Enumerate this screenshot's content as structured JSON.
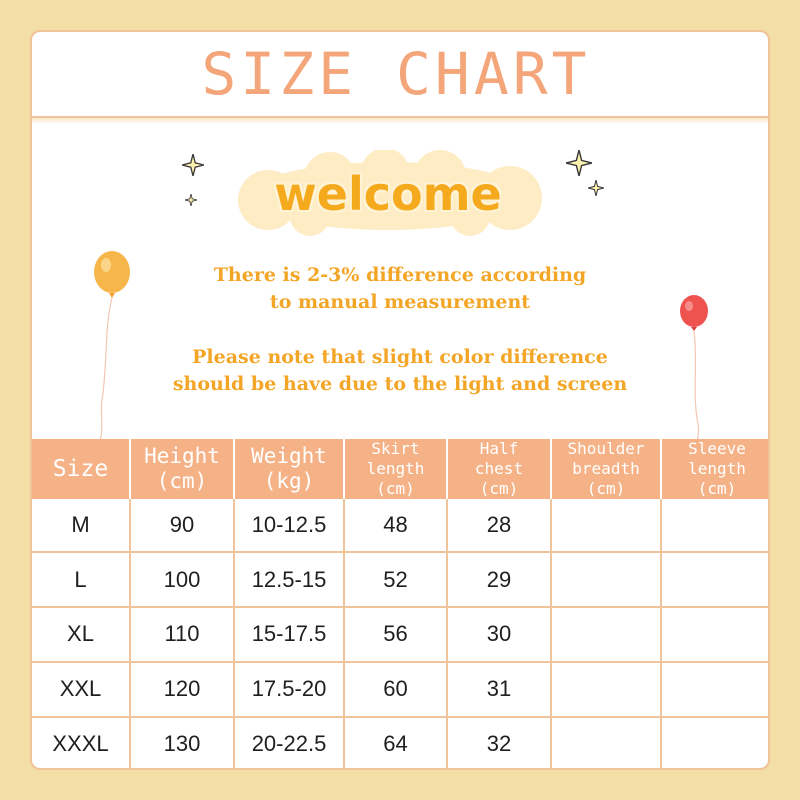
{
  "header": {
    "title": "SIZE CHART"
  },
  "banner": {
    "welcome": "welcome"
  },
  "notes": {
    "line1": "There is 2-3% difference according",
    "line2": "to manual measurement",
    "line3": "Please note that slight color difference",
    "line4": "should be have due to the light and screen"
  },
  "table": {
    "headers": [
      {
        "line1": "Size",
        "line2": "",
        "line3": ""
      },
      {
        "line1": "Height",
        "line2": "(cm)",
        "line3": ""
      },
      {
        "line1": "Weight",
        "line2": "(kg)",
        "line3": ""
      },
      {
        "line1": "Skirt",
        "line2": "length",
        "line3": "(cm)"
      },
      {
        "line1": "Half",
        "line2": "chest",
        "line3": "(cm)"
      },
      {
        "line1": "Shoulder",
        "line2": "breadth",
        "line3": "(cm)"
      },
      {
        "line1": "Sleeve",
        "line2": "length",
        "line3": "(cm)"
      }
    ],
    "rows": [
      [
        "M",
        "90",
        "10-12.5",
        "48",
        "28",
        "",
        ""
      ],
      [
        "L",
        "100",
        "12.5-15",
        "52",
        "29",
        "",
        ""
      ],
      [
        "XL",
        "110",
        "15-17.5",
        "56",
        "30",
        "",
        ""
      ],
      [
        "XXL",
        "120",
        "17.5-20",
        "60",
        "31",
        "",
        ""
      ],
      [
        "XXXL",
        "130",
        "20-22.5",
        "64",
        "32",
        "",
        ""
      ]
    ]
  },
  "colors": {
    "page_background": "#f3dfa6",
    "title_peach": "#f4a67a",
    "header_fill": "#f6b287",
    "welcome_orange": "#f5a91c",
    "note_orange": "#f3a526",
    "border": "#f0c49a"
  },
  "icons": [
    "sparkle-star-icon",
    "orange-balloon-icon",
    "red-balloon-icon",
    "cloud-shape"
  ]
}
